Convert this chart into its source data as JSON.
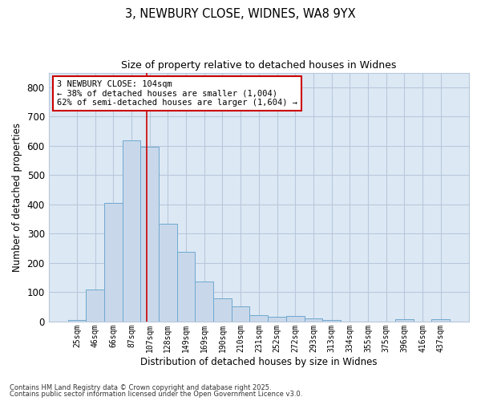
{
  "title1": "3, NEWBURY CLOSE, WIDNES, WA8 9YX",
  "title2": "Size of property relative to detached houses in Widnes",
  "xlabel": "Distribution of detached houses by size in Widnes",
  "ylabel": "Number of detached properties",
  "categories": [
    "25sqm",
    "46sqm",
    "66sqm",
    "87sqm",
    "107sqm",
    "128sqm",
    "149sqm",
    "169sqm",
    "190sqm",
    "210sqm",
    "231sqm",
    "252sqm",
    "272sqm",
    "293sqm",
    "313sqm",
    "334sqm",
    "355sqm",
    "375sqm",
    "396sqm",
    "416sqm",
    "437sqm"
  ],
  "values": [
    5,
    110,
    405,
    620,
    598,
    335,
    237,
    137,
    80,
    53,
    22,
    15,
    18,
    10,
    4,
    0,
    0,
    0,
    8,
    0,
    7
  ],
  "bar_color": "#c8d8ea",
  "bar_edge_color": "#6fa8d0",
  "grid_color": "#b8c8dc",
  "vline_color": "#cc0000",
  "annotation_text": "3 NEWBURY CLOSE: 104sqm\n← 38% of detached houses are smaller (1,004)\n62% of semi-detached houses are larger (1,604) →",
  "annotation_box_color": "#ffffff",
  "annotation_box_edge": "#cc0000",
  "footer1": "Contains HM Land Registry data © Crown copyright and database right 2025.",
  "footer2": "Contains public sector information licensed under the Open Government Licence v3.0.",
  "ylim": [
    0,
    850
  ],
  "fig_background": "#ffffff",
  "plot_background": "#dce8f4"
}
